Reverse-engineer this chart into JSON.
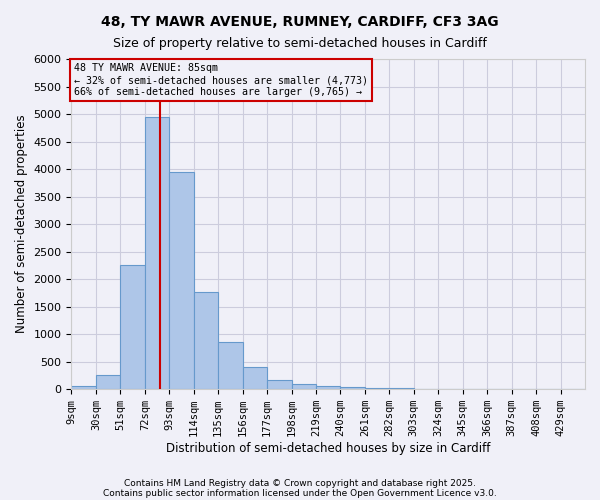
{
  "title1": "48, TY MAWR AVENUE, RUMNEY, CARDIFF, CF3 3AG",
  "title2": "Size of property relative to semi-detached houses in Cardiff",
  "xlabel": "Distribution of semi-detached houses by size in Cardiff",
  "ylabel": "Number of semi-detached properties",
  "bin_labels": [
    "9sqm",
    "30sqm",
    "51sqm",
    "72sqm",
    "93sqm",
    "114sqm",
    "135sqm",
    "156sqm",
    "177sqm",
    "198sqm",
    "219sqm",
    "240sqm",
    "261sqm",
    "282sqm",
    "303sqm",
    "324sqm",
    "345sqm",
    "366sqm",
    "387sqm",
    "408sqm",
    "429sqm"
  ],
  "bin_edges": [
    9,
    30,
    51,
    72,
    93,
    114,
    135,
    156,
    177,
    198,
    219,
    240,
    261,
    282,
    303,
    324,
    345,
    366,
    387,
    408,
    429
  ],
  "bar_heights": [
    50,
    250,
    2250,
    4950,
    3950,
    1775,
    850,
    400,
    175,
    100,
    65,
    45,
    30,
    15,
    5,
    2,
    1,
    0,
    0,
    0
  ],
  "bar_color": "#aec6e8",
  "bar_edge_color": "#6699cc",
  "grid_color": "#ccccdd",
  "property_size": 85,
  "redline_color": "#cc0000",
  "annotation_title": "48 TY MAWR AVENUE: 85sqm",
  "annotation_line1": "← 32% of semi-detached houses are smaller (4,773)",
  "annotation_line2": "66% of semi-detached houses are larger (9,765) →",
  "annotation_box_color": "#cc0000",
  "ylim": [
    0,
    6000
  ],
  "yticks": [
    0,
    500,
    1000,
    1500,
    2000,
    2500,
    3000,
    3500,
    4000,
    4500,
    5000,
    5500,
    6000
  ],
  "footnote1": "Contains HM Land Registry data © Crown copyright and database right 2025.",
  "footnote2": "Contains public sector information licensed under the Open Government Licence v3.0.",
  "bg_color": "#f0f0f8"
}
